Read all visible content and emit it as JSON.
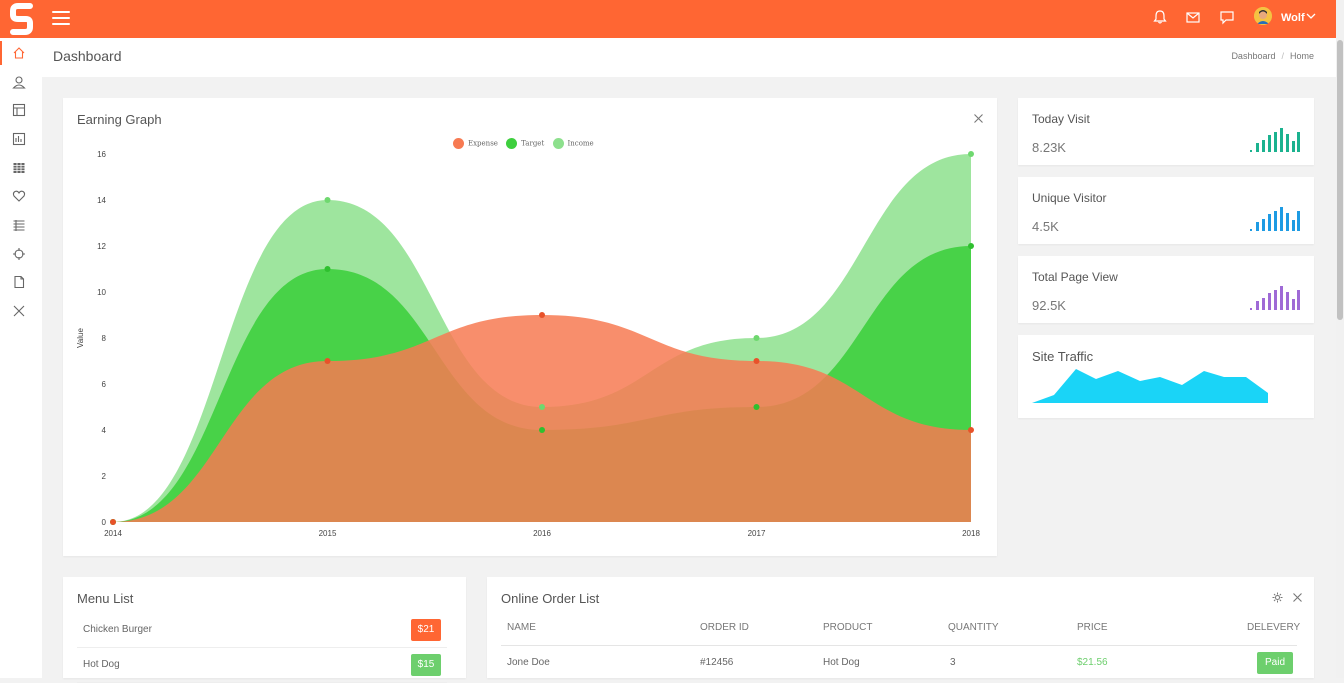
{
  "topbar": {
    "username": "Wolf",
    "brand_color": "#ff6633"
  },
  "sidebar": {
    "items": [
      {
        "icon": "home-icon",
        "active": true
      },
      {
        "icon": "user-icon"
      },
      {
        "icon": "layout-icon"
      },
      {
        "icon": "chart-icon"
      },
      {
        "icon": "grid-icon"
      },
      {
        "icon": "heart-icon"
      },
      {
        "icon": "list-icon"
      },
      {
        "icon": "crosshair-icon"
      },
      {
        "icon": "file-icon"
      },
      {
        "icon": "close-icon"
      }
    ]
  },
  "header": {
    "title": "Dashboard",
    "breadcrumb": [
      "Dashboard",
      "Home"
    ]
  },
  "earning_graph": {
    "title": "Earning Graph",
    "legend": [
      {
        "name": "Expense",
        "color": "#f77a52"
      },
      {
        "name": "Target",
        "color": "#3ecf3e"
      },
      {
        "name": "Income",
        "color": "#8de08d"
      }
    ]
  },
  "stats": [
    {
      "label": "Today Visit",
      "value": "8.23K",
      "color": "#1bb28f"
    },
    {
      "label": "Unique Visitor",
      "value": "4.5K",
      "color": "#1e9be3"
    },
    {
      "label": "Total Page View",
      "value": "92.5K",
      "color": "#9f6ad6"
    }
  ],
  "site_traffic": {
    "title": "Site Traffic",
    "color": "#1ad4f7"
  },
  "menu_list": {
    "title": "Menu List",
    "items": [
      {
        "name": "Chicken Burger",
        "price": "$21",
        "color": "#ff6633"
      },
      {
        "name": "Hot Dog",
        "price": "$15",
        "color": "#6dcf6d"
      }
    ]
  },
  "order_list": {
    "title": "Online Order List",
    "columns": [
      "NAME",
      "ORDER ID",
      "PRODUCT",
      "QUANTITY",
      "PRICE",
      "DELEVERY"
    ],
    "rows": [
      {
        "name": "Jone Doe",
        "order_id": "#12456",
        "product": "Hot Dog",
        "quantity": "3",
        "price": "$21.56",
        "delivery": "Paid"
      }
    ]
  },
  "chart_data": {
    "type": "area",
    "title": "Earning Graph",
    "ylabel": "Value",
    "x": [
      "2014",
      "2015",
      "2016",
      "2017",
      "2018"
    ],
    "ylim": [
      0,
      16
    ],
    "yticks": [
      0,
      2,
      4,
      6,
      8,
      10,
      12,
      14,
      16
    ],
    "legend_position": "top",
    "series": [
      {
        "name": "Income",
        "values": [
          0,
          14,
          5,
          8,
          16
        ],
        "color": "#8de08d"
      },
      {
        "name": "Target",
        "values": [
          0,
          11,
          4,
          5,
          12
        ],
        "color": "#3ecf3e"
      },
      {
        "name": "Expense",
        "values": [
          0,
          7,
          9,
          7,
          4
        ],
        "color": "#f77a52"
      }
    ]
  }
}
